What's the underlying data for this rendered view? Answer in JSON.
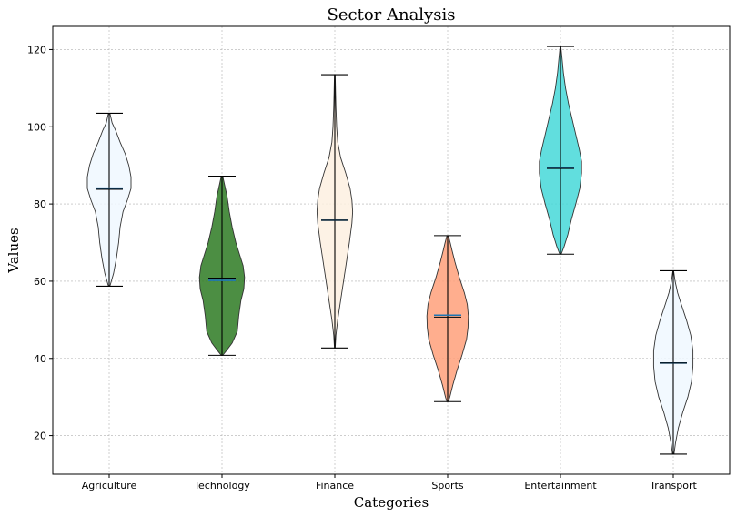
{
  "chart_data": {
    "type": "violin",
    "title": "Sector Analysis",
    "xlabel": "Categories",
    "ylabel": "Values",
    "ylim": [
      10,
      126
    ],
    "yticks": [
      20,
      40,
      60,
      80,
      100,
      120
    ],
    "grid": true,
    "categories": [
      "Agriculture",
      "Technology",
      "Finance",
      "Sports",
      "Entertainment",
      "Transport"
    ],
    "series": [
      {
        "category": "Agriculture",
        "min": 58.7,
        "max": 103.5,
        "mean": 84.1,
        "median": 83.8,
        "color": "#f0f8ff",
        "profile": [
          [
            58.7,
            0.02
          ],
          [
            62,
            0.12
          ],
          [
            66,
            0.2
          ],
          [
            70,
            0.26
          ],
          [
            74,
            0.3
          ],
          [
            78,
            0.38
          ],
          [
            81,
            0.5
          ],
          [
            84,
            0.6
          ],
          [
            87,
            0.6
          ],
          [
            90,
            0.54
          ],
          [
            93,
            0.44
          ],
          [
            96,
            0.3
          ],
          [
            99,
            0.18
          ],
          [
            101,
            0.08
          ],
          [
            103.5,
            0.02
          ]
        ]
      },
      {
        "category": "Technology",
        "min": 40.8,
        "max": 87.2,
        "mean": 60.2,
        "median": 60.8,
        "color": "#2d7a22",
        "profile": [
          [
            40.8,
            0.02
          ],
          [
            42,
            0.12
          ],
          [
            44,
            0.28
          ],
          [
            47,
            0.42
          ],
          [
            51,
            0.46
          ],
          [
            55,
            0.52
          ],
          [
            58,
            0.6
          ],
          [
            61,
            0.62
          ],
          [
            64,
            0.58
          ],
          [
            67,
            0.48
          ],
          [
            70,
            0.38
          ],
          [
            74,
            0.28
          ],
          [
            78,
            0.2
          ],
          [
            82,
            0.14
          ],
          [
            85,
            0.07
          ],
          [
            87.2,
            0.02
          ]
        ]
      },
      {
        "category": "Finance",
        "min": 42.7,
        "max": 113.5,
        "mean": 75.8,
        "median": 75.8,
        "color": "#fdf0e0",
        "profile": [
          [
            42.7,
            0.01
          ],
          [
            46,
            0.03
          ],
          [
            50,
            0.08
          ],
          [
            55,
            0.16
          ],
          [
            60,
            0.24
          ],
          [
            65,
            0.32
          ],
          [
            70,
            0.4
          ],
          [
            75,
            0.47
          ],
          [
            78,
            0.49
          ],
          [
            81,
            0.47
          ],
          [
            84,
            0.42
          ],
          [
            88,
            0.3
          ],
          [
            92,
            0.16
          ],
          [
            96,
            0.08
          ],
          [
            100,
            0.05
          ],
          [
            105,
            0.03
          ],
          [
            109,
            0.02
          ],
          [
            113.5,
            0.01
          ]
        ]
      },
      {
        "category": "Sports",
        "min": 28.8,
        "max": 71.8,
        "mean": 51.2,
        "median": 50.7,
        "color": "#ffa07a",
        "profile": [
          [
            28.8,
            0.02
          ],
          [
            30,
            0.06
          ],
          [
            33,
            0.14
          ],
          [
            37,
            0.26
          ],
          [
            41,
            0.4
          ],
          [
            45,
            0.52
          ],
          [
            48,
            0.56
          ],
          [
            51,
            0.57
          ],
          [
            54,
            0.54
          ],
          [
            57,
            0.46
          ],
          [
            61,
            0.32
          ],
          [
            65,
            0.2
          ],
          [
            68,
            0.12
          ],
          [
            70,
            0.07
          ],
          [
            71.8,
            0.02
          ]
        ]
      },
      {
        "category": "Entertainment",
        "min": 67,
        "max": 120.8,
        "mean": 89.5,
        "median": 89.2,
        "color": "#45d8d8",
        "profile": [
          [
            67,
            0.02
          ],
          [
            69,
            0.1
          ],
          [
            72,
            0.2
          ],
          [
            76,
            0.3
          ],
          [
            80,
            0.42
          ],
          [
            84,
            0.53
          ],
          [
            88,
            0.58
          ],
          [
            91,
            0.58
          ],
          [
            94,
            0.52
          ],
          [
            98,
            0.42
          ],
          [
            102,
            0.32
          ],
          [
            106,
            0.22
          ],
          [
            110,
            0.14
          ],
          [
            114,
            0.08
          ],
          [
            118,
            0.04
          ],
          [
            120.8,
            0.01
          ]
        ]
      },
      {
        "category": "Transport",
        "min": 15.2,
        "max": 62.7,
        "mean": 38.8,
        "median": 38.8,
        "color": "#f0f8ff",
        "profile": [
          [
            15.2,
            0.02
          ],
          [
            18,
            0.06
          ],
          [
            22,
            0.14
          ],
          [
            26,
            0.26
          ],
          [
            30,
            0.4
          ],
          [
            34,
            0.5
          ],
          [
            38,
            0.54
          ],
          [
            42,
            0.54
          ],
          [
            46,
            0.48
          ],
          [
            50,
            0.36
          ],
          [
            54,
            0.22
          ],
          [
            57,
            0.12
          ],
          [
            60,
            0.05
          ],
          [
            62.7,
            0.01
          ]
        ]
      }
    ]
  }
}
